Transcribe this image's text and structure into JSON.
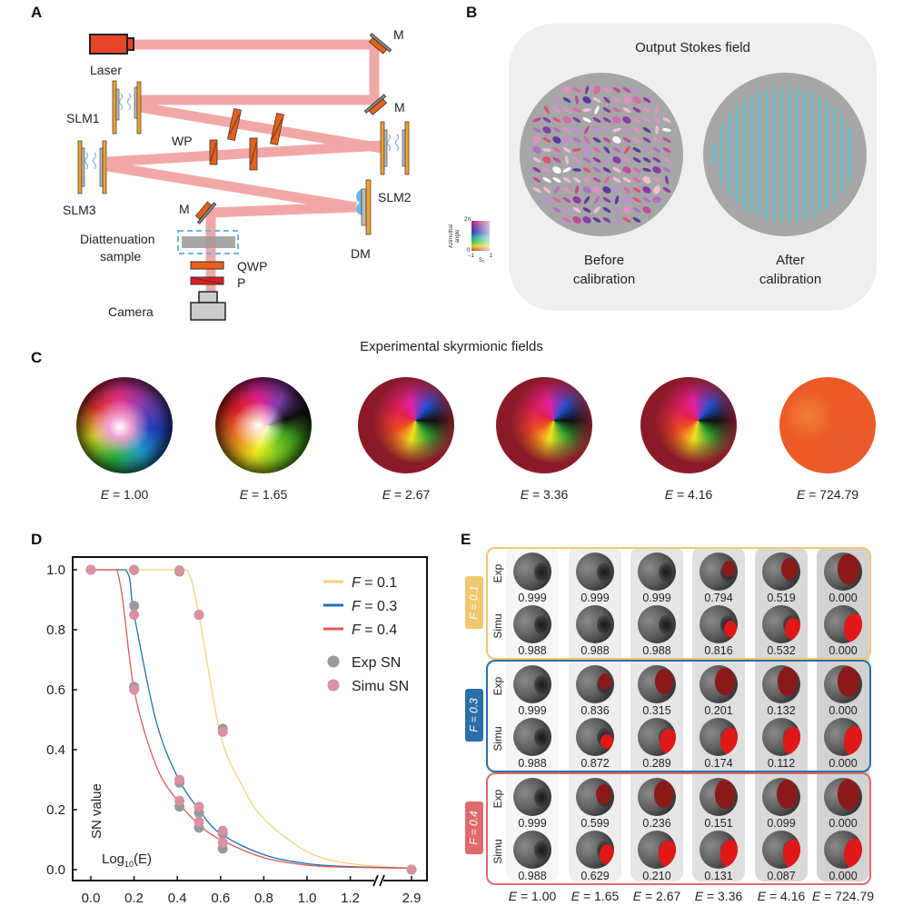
{
  "panels": {
    "A": {
      "letter": "A",
      "labels": {
        "laser": "Laser",
        "mirror": "M",
        "slm1": "SLM1",
        "slm2": "SLM2",
        "slm3": "SLM3",
        "wp": "WP",
        "dm": "DM",
        "sample_line1": "Diattenuation",
        "sample_line2": "sample",
        "qwp": "QWP",
        "polarizer": "P",
        "camera": "Camera"
      },
      "colors": {
        "beam": "#f2a3a3",
        "laser": "#e8442a",
        "slm": "#f0a030",
        "waveplate": "#e8601a",
        "polarizer": "#e01c20",
        "sample_box": "#6cb4e8"
      }
    },
    "B": {
      "letter": "B",
      "title": "Output Stokes field",
      "before_line1": "Before",
      "before_line2": "calibration",
      "after_line1": "After",
      "after_line2": "calibration",
      "colorbar": {
        "ylabel_line1": "Azimuthal",
        "ylabel_line2": "angle",
        "ytop": "2π",
        "ybottom": "0",
        "xleft": "−1",
        "xright": "1",
        "xlabel": "S₃"
      },
      "colors": {
        "bg": "#efefef",
        "disk": "#a6a6a6",
        "after_lines": "#4fc8d8"
      }
    },
    "C": {
      "letter": "C",
      "title": "Experimental skyrmionic fields",
      "fields": [
        {
          "E_label": "E",
          "E_value": "= 1.00"
        },
        {
          "E_label": "E",
          "E_value": "= 1.65"
        },
        {
          "E_label": "E",
          "E_value": "= 2.67"
        },
        {
          "E_label": "E",
          "E_value": "= 3.36"
        },
        {
          "E_label": "E",
          "E_value": "= 4.16"
        },
        {
          "E_label": "E",
          "E_value": "= 724.79"
        }
      ]
    },
    "D": {
      "letter": "D"
    },
    "E": {
      "letter": "E",
      "row_labels": {
        "exp": "Exp",
        "simu": "Simu"
      },
      "groups": [
        {
          "tag": "F = 0.1",
          "color": "#f0c870",
          "exp": [
            "0.999",
            "0.999",
            "0.999",
            "0.794",
            "0.519",
            "0.000"
          ],
          "simu": [
            "0.988",
            "0.988",
            "0.988",
            "0.816",
            "0.532",
            "0.000"
          ]
        },
        {
          "tag": "F = 0.3",
          "color": "#2a6fa8",
          "exp": [
            "0.999",
            "0.836",
            "0.315",
            "0.201",
            "0.132",
            "0.000"
          ],
          "simu": [
            "0.988",
            "0.872",
            "0.289",
            "0.174",
            "0.112",
            "0.000"
          ]
        },
        {
          "tag": "F = 0.4",
          "color": "#e06a6a",
          "exp": [
            "0.999",
            "0.599",
            "0.236",
            "0.151",
            "0.099",
            "0.000"
          ],
          "simu": [
            "0.988",
            "0.629",
            "0.210",
            "0.131",
            "0.087",
            "0.000"
          ]
        }
      ],
      "columns": [
        "E = 1.00",
        "E = 1.65",
        "E = 2.67",
        "E = 3.36",
        "E = 4.16",
        "E = 724.79"
      ]
    }
  },
  "chart_data": {
    "type": "scatter",
    "title": "",
    "xlabel": "Log10(E)",
    "ylabel": "SN value",
    "xlim": [
      0.0,
      2.9
    ],
    "ylim": [
      0.0,
      1.0
    ],
    "axis_break": "between 1.2 and 2.9",
    "xticks": [
      "0.0",
      "0.2",
      "0.4",
      "0.6",
      "0.8",
      "1.0",
      "1.2",
      "2.9"
    ],
    "yticks": [
      "0.0",
      "0.2",
      "0.4",
      "0.6",
      "0.8",
      "1.0"
    ],
    "grid": false,
    "legend_position": "top-right",
    "legend": [
      {
        "name": "F = 0.1",
        "kind": "line",
        "color": "#f5d27a"
      },
      {
        "name": "F = 0.3",
        "kind": "line",
        "color": "#2070b4"
      },
      {
        "name": "F = 0.4",
        "kind": "line",
        "color": "#e05a5a"
      },
      {
        "name": "Exp SN",
        "kind": "marker",
        "color": "#999999"
      },
      {
        "name": "Simu SN",
        "kind": "marker",
        "color": "#d9909f"
      }
    ],
    "series": [
      {
        "name": "F = 0.1",
        "kind": "curve",
        "color": "#f5d27a",
        "x": [
          0.0,
          0.2,
          0.4,
          0.45,
          0.5,
          0.6,
          0.7,
          0.8,
          1.0,
          1.2,
          2.9
        ],
        "y": [
          1.0,
          1.0,
          1.0,
          0.995,
          0.85,
          0.45,
          0.28,
          0.17,
          0.06,
          0.02,
          0.005
        ]
      },
      {
        "name": "F = 0.3",
        "kind": "curve",
        "color": "#2070b4",
        "x": [
          0.0,
          0.16,
          0.2,
          0.3,
          0.4,
          0.5,
          0.6,
          0.8,
          1.0,
          1.2,
          2.9
        ],
        "y": [
          1.0,
          1.0,
          0.85,
          0.5,
          0.31,
          0.2,
          0.12,
          0.05,
          0.02,
          0.01,
          0.005
        ]
      },
      {
        "name": "F = 0.4",
        "kind": "curve",
        "color": "#e05a5a",
        "x": [
          0.0,
          0.12,
          0.2,
          0.3,
          0.4,
          0.5,
          0.6,
          0.8,
          1.0,
          1.2,
          2.9
        ],
        "y": [
          1.0,
          1.0,
          0.6,
          0.35,
          0.23,
          0.15,
          0.1,
          0.04,
          0.015,
          0.008,
          0.005
        ]
      },
      {
        "name": "Exp SN",
        "kind": "points",
        "color": "#999999",
        "x": [
          0.0,
          0.2,
          0.2,
          0.41,
          0.5,
          0.61,
          0.2,
          0.41,
          0.5,
          0.61,
          0.2,
          0.41,
          0.5,
          0.61,
          2.9
        ],
        "y": [
          1.0,
          1.0,
          0.999,
          0.994,
          0.85,
          0.47,
          0.88,
          0.29,
          0.19,
          0.12,
          0.61,
          0.21,
          0.14,
          0.07,
          0.0
        ]
      },
      {
        "name": "Simu SN",
        "kind": "points",
        "color": "#d9909f",
        "x": [
          0.0,
          0.2,
          0.41,
          0.5,
          0.61,
          0.2,
          0.41,
          0.5,
          0.61,
          0.2,
          0.41,
          0.5,
          0.61,
          2.9
        ],
        "y": [
          1.0,
          1.0,
          0.998,
          0.85,
          0.46,
          0.85,
          0.3,
          0.21,
          0.13,
          0.6,
          0.23,
          0.16,
          0.09,
          0.0
        ]
      }
    ]
  }
}
